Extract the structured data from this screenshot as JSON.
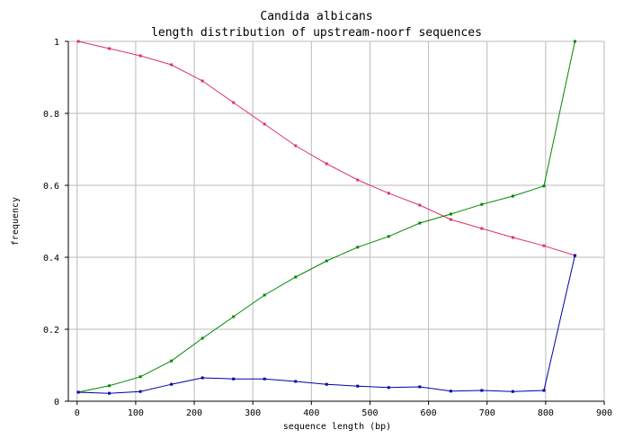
{
  "chart_data": {
    "type": "line",
    "title": "Candida albicans",
    "subtitle": "length distribution of upstream-noorf sequences",
    "xlabel": "sequence length (bp)",
    "ylabel": "frequency",
    "xlim": [
      -15,
      900
    ],
    "ylim": [
      0,
      1
    ],
    "xticks": [
      "0",
      "100",
      "200",
      "300",
      "400",
      "500",
      "600",
      "700",
      "800",
      "900"
    ],
    "yticks": [
      "0",
      "0.2",
      "0.4",
      "0.6",
      "0.8",
      "1"
    ],
    "grid": true,
    "x": [
      2,
      55,
      108,
      161,
      214,
      267,
      320,
      373,
      426,
      479,
      532,
      585,
      638,
      691,
      744,
      797,
      850
    ],
    "series": [
      {
        "color": "#dd3366",
        "values": [
          1.0,
          0.98,
          0.96,
          0.935,
          0.89,
          0.83,
          0.77,
          0.71,
          0.66,
          0.615,
          0.578,
          0.545,
          0.505,
          0.48,
          0.455,
          0.432,
          0.405
        ]
      },
      {
        "color": "#008800",
        "values": [
          0.025,
          0.043,
          0.068,
          0.112,
          0.175,
          0.235,
          0.295,
          0.345,
          0.39,
          0.428,
          0.458,
          0.495,
          0.52,
          0.547,
          0.57,
          0.598,
          1.0
        ]
      },
      {
        "color": "#0000aa",
        "values": [
          0.025,
          0.022,
          0.027,
          0.047,
          0.065,
          0.062,
          0.062,
          0.055,
          0.047,
          0.042,
          0.038,
          0.04,
          0.028,
          0.03,
          0.027,
          0.03,
          0.405
        ]
      }
    ]
  }
}
